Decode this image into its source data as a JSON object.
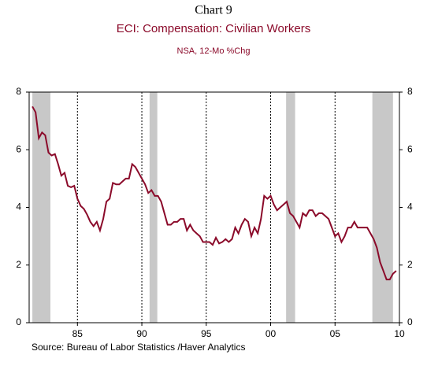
{
  "chart_data": {
    "type": "line",
    "label": "Chart 9",
    "title": "ECI: Compensation: Civilian Workers",
    "subtitle": "NSA, 12-Mo %Chg",
    "source": "Source:  Bureau of Labor Statistics /Haver Analytics",
    "xlim": [
      1981.25,
      2010
    ],
    "xticks": [
      {
        "value": 1985,
        "label": "85"
      },
      {
        "value": 1990,
        "label": "90"
      },
      {
        "value": 1995,
        "label": "95"
      },
      {
        "value": 2000,
        "label": "00"
      },
      {
        "value": 2005,
        "label": "05"
      },
      {
        "value": 2010,
        "label": "10"
      }
    ],
    "ylim": [
      0,
      8
    ],
    "yticks": [
      0,
      2,
      4,
      6,
      8
    ],
    "grid": true,
    "shade_color": "#c8c8c8",
    "shaded_periods": [
      [
        1981.5,
        1982.9
      ],
      [
        1990.6,
        1991.2
      ],
      [
        2001.2,
        2001.9
      ],
      [
        2007.9,
        2009.5
      ]
    ],
    "x": [
      1981.5,
      1981.75,
      1982,
      1982.25,
      1982.5,
      1982.75,
      1983,
      1983.25,
      1983.5,
      1983.75,
      1984,
      1984.25,
      1984.5,
      1984.75,
      1985,
      1985.25,
      1985.5,
      1985.75,
      1986,
      1986.25,
      1986.5,
      1986.75,
      1987,
      1987.25,
      1987.5,
      1987.75,
      1988,
      1988.25,
      1988.5,
      1988.75,
      1989,
      1989.25,
      1989.5,
      1989.75,
      1990,
      1990.25,
      1990.5,
      1990.75,
      1991,
      1991.25,
      1991.5,
      1991.75,
      1992,
      1992.25,
      1992.5,
      1992.75,
      1993,
      1993.25,
      1993.5,
      1993.75,
      1994,
      1994.25,
      1994.5,
      1994.75,
      1995,
      1995.25,
      1995.5,
      1995.75,
      1996,
      1996.25,
      1996.5,
      1996.75,
      1997,
      1997.25,
      1997.5,
      1997.75,
      1998,
      1998.25,
      1998.5,
      1998.75,
      1999,
      1999.25,
      1999.5,
      1999.75,
      2000,
      2000.25,
      2000.5,
      2000.75,
      2001,
      2001.25,
      2001.5,
      2001.75,
      2002,
      2002.25,
      2002.5,
      2002.75,
      2003,
      2003.25,
      2003.5,
      2003.75,
      2004,
      2004.25,
      2004.5,
      2004.75,
      2005,
      2005.25,
      2005.5,
      2005.75,
      2006,
      2006.25,
      2006.5,
      2006.75,
      2007,
      2007.25,
      2007.5,
      2007.75,
      2008,
      2008.25,
      2008.5,
      2008.75,
      2009,
      2009.25,
      2009.5,
      2009.75
    ],
    "series": [
      {
        "color": "#8b0a2a",
        "values": [
          7.5,
          7.3,
          6.4,
          6.6,
          6.5,
          5.9,
          5.8,
          5.85,
          5.5,
          5.1,
          5.2,
          4.75,
          4.7,
          4.75,
          4.3,
          4.05,
          3.95,
          3.75,
          3.5,
          3.35,
          3.5,
          3.2,
          3.6,
          4.2,
          4.3,
          4.85,
          4.8,
          4.8,
          4.9,
          5.0,
          5.0,
          5.5,
          5.4,
          5.2,
          5.0,
          4.8,
          4.5,
          4.6,
          4.4,
          4.4,
          4.2,
          3.8,
          3.4,
          3.4,
          3.5,
          3.5,
          3.6,
          3.6,
          3.2,
          3.4,
          3.2,
          3.1,
          3.0,
          2.8,
          2.8,
          2.8,
          2.7,
          2.95,
          2.75,
          2.8,
          2.9,
          2.8,
          2.9,
          3.3,
          3.1,
          3.4,
          3.6,
          3.5,
          3.0,
          3.3,
          3.1,
          3.6,
          4.4,
          4.3,
          4.4,
          4.1,
          3.9,
          4.0,
          4.1,
          4.2,
          3.8,
          3.7,
          3.5,
          3.3,
          3.8,
          3.7,
          3.9,
          3.9,
          3.7,
          3.8,
          3.8,
          3.7,
          3.6,
          3.3,
          3.0,
          3.1,
          2.8,
          3.0,
          3.3,
          3.3,
          3.5,
          3.3,
          3.3,
          3.3,
          3.3,
          3.1,
          2.9,
          2.6,
          2.1,
          1.8,
          1.5,
          1.5,
          1.7,
          1.8
        ]
      }
    ]
  }
}
